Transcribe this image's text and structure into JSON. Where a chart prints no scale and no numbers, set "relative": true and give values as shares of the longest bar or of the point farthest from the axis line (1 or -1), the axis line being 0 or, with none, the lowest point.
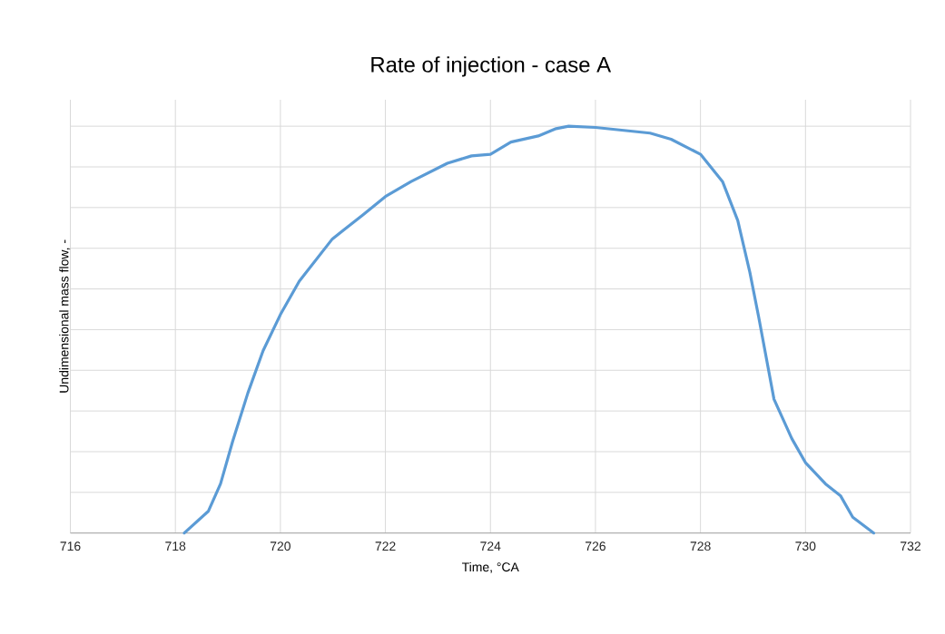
{
  "chart_data": {
    "type": "line",
    "title": "Rate of injection - case A",
    "xlabel": "Time, °CA",
    "ylabel": "Undimensional mass flow, -",
    "relative": true,
    "grid": true,
    "line_style": "solid",
    "marker": "none",
    "xlim": [
      716,
      732
    ],
    "xticks": [
      716,
      718,
      720,
      722,
      724,
      726,
      728,
      730,
      732
    ],
    "x": [
      718.17,
      718.63,
      718.86,
      719.09,
      719.38,
      719.67,
      720.0,
      720.36,
      720.99,
      721.57,
      722.0,
      722.49,
      723.18,
      723.64,
      724.0,
      724.39,
      724.91,
      725.25,
      725.49,
      726.0,
      727.04,
      727.44,
      728.0,
      728.42,
      728.71,
      728.94,
      729.11,
      729.4,
      729.74,
      730.0,
      730.38,
      730.67,
      730.9,
      731.3
    ],
    "series": [
      {
        "color": "#5b9bd5",
        "values": [
          0,
          0.054,
          0.121,
          0.225,
          0.344,
          0.448,
          0.537,
          0.619,
          0.723,
          0.782,
          0.827,
          0.864,
          0.909,
          0.927,
          0.931,
          0.961,
          0.976,
          0.994,
          1.0,
          0.997,
          0.983,
          0.968,
          0.931,
          0.864,
          0.768,
          0.641,
          0.53,
          0.329,
          0.232,
          0.173,
          0.121,
          0.091,
          0.039,
          0
        ]
      }
    ]
  }
}
